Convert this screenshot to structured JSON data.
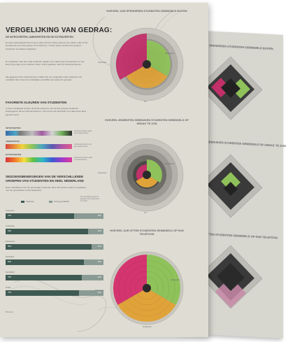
{
  "poster": {
    "title": "VERGELIJKING VAN GEDRAG:",
    "subtitle": "DE INTROVERTEN, AMBIVERTEN EN DE EXTRAVERTEN",
    "intro_1": "Er wordt vaak gedacht dat mensen ofwel introvert ofwel extravert zijn. Maar is dat zo? Er bestaat ook een tussengroep: de ambiverten. In deze poster worden drie groepen studenten met elkaar vergeleken.",
    "intro_2": "Er is gekeken naar hoe vaak studenten uitgaan, hoe vaak zij sport beoefenen en hoe lang zij per dag op hun telefoon zitten. Ook is gekeken naar hun favoriete kleuren.",
    "intro_3": "Alle gegevens zijn verzameld door middel van een vragenlijst onder studenten. De resultaten laten zien dat er duidelijke verschillen zijn tussen de groepen."
  },
  "colors_section": {
    "heading": "FAVORIETE KLEUREN VAN STUDENTEN",
    "text": "In deze visualisatie worden de kleurvoorkeuren van de drie groepen studenten weergegeven als een kleurenspectrum. Hoe groter een kleurvlak, hoe vaker deze kleur gekozen werd.",
    "rows": [
      {
        "label": "INTROVERTEN",
        "note": "Introverten kiezen vaker voor rustige kleuren"
      },
      {
        "label": "AMBIVERTEN",
        "note": "Ambiverten kiezen voor gemengde kleuren"
      },
      {
        "label": "EXTRAVERTEN",
        "note": "Extraverten kiezen vaker voor felle kleuren"
      }
    ]
  },
  "seasons_section": {
    "heading": "SEIZOENSBEWEGINGEN VAN DE VERSCHILLENDE GROEPEN VAN STUDENTEN EN HEEL NEDERLAND",
    "text": "Deze visualisatie toont het percentage studenten dat in elk seizoen actief is vergeleken met het gemiddelde in heel Nederland.",
    "legend": [
      "Studenten",
      "Overig gemiddelde"
    ],
    "note": "De verschillen tussen de groepen zijn het grootst in de zomer.",
    "bars": [
      {
        "label": "Introverten",
        "value": "70%",
        "rest": "30%",
        "fill": 0.7
      },
      {
        "label": "Ambiverten",
        "value": "84%",
        "rest": "16%",
        "fill": 0.84
      },
      {
        "label": "Extraverten",
        "value": "88%",
        "rest": "12%",
        "fill": 0.88
      },
      {
        "label": "Nederland",
        "value": "80%",
        "rest": "20%",
        "fill": 0.8
      },
      {
        "label": "Gemiddeld",
        "value": "78%",
        "rest": "22%",
        "fill": 0.78
      },
      {
        "label": "Totaal",
        "value": "75%",
        "rest": "25%",
        "fill": 0.75
      }
    ],
    "footer": "Bronnen"
  },
  "charts": [
    {
      "title": "HOEVEEL UUR SPENDEREN STUDENTEN GEMIDDELD BUITEN",
      "center": "0.0",
      "labels": [
        "Extraverten",
        "Introverten",
        "Ambiverten",
        "Totaal gemiddelde"
      ]
    },
    {
      "title": "HOEVEEL MOMENTEN GEBRUIKEN STUDENTEN GEMIDDELD OP GEDAG TE ZIJN",
      "center": "0.0",
      "labels": [
        "Extraverten",
        "Introverten",
        "Ambiverten",
        "Totaal gemiddelde"
      ]
    },
    {
      "title": "HOEVEEL UUR ZITTEN STUDENTEN GEMIDDELD OP HUN TELEFOON",
      "center": "0.0",
      "labels": [
        "Extraverten",
        "Introverten",
        "Ambiverten",
        "Totaal gemiddelde"
      ]
    }
  ],
  "colors": {
    "introvert": "#c2306a",
    "ambivert": "#e0a33a",
    "extravert": "#8fc25a",
    "bar_dark": "#3f5a52"
  }
}
